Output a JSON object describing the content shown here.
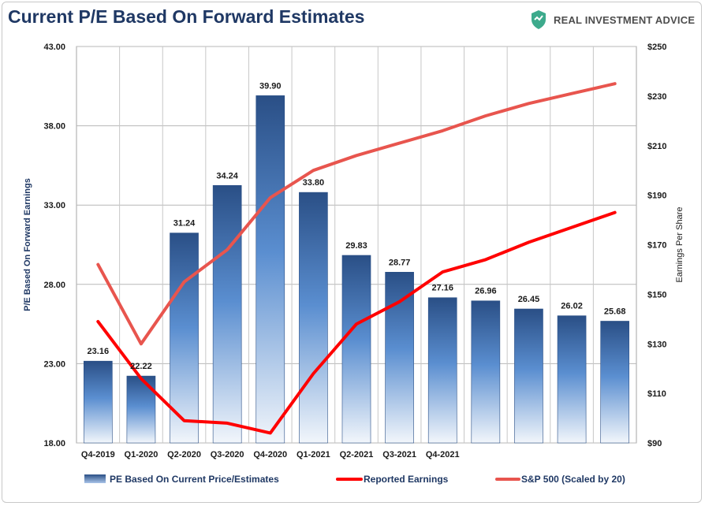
{
  "header": {
    "title": "Current P/E Based On Forward Estimates",
    "brand": "REAL INVESTMENT ADVICE",
    "brand_icon": "shield-icon"
  },
  "chart_data": {
    "type": "bar",
    "title": "Current P/E Based On Forward Estimates",
    "categories": [
      "Q4-2019",
      "Q1-2020",
      "Q2-2020",
      "Q3-2020",
      "Q4-2020",
      "Q1-2021",
      "Q2-2021",
      "Q3-2021",
      "Q4-2021",
      "",
      "",
      "",
      ""
    ],
    "ylabel": "P/E Based On Forward Earnings",
    "y2label": "Earnings Per Share",
    "ylim": [
      18,
      43
    ],
    "yticks": [
      "18.00",
      "23.00",
      "28.00",
      "33.00",
      "38.00",
      "43.00"
    ],
    "y2lim": [
      90,
      250
    ],
    "y2ticks": [
      "$90",
      "$110",
      "$130",
      "$150",
      "$170",
      "$190",
      "$210",
      "$230",
      "$250"
    ],
    "grid": true,
    "legend_position": "bottom",
    "series": [
      {
        "name": "PE Based On Current Price/Estimates",
        "type": "bar",
        "axis": "left",
        "color": "#2e5a94",
        "values": [
          23.16,
          22.22,
          31.24,
          34.24,
          39.9,
          33.8,
          29.83,
          28.77,
          27.16,
          26.96,
          26.45,
          26.02,
          25.68
        ],
        "labels": [
          "23.16",
          "22.22",
          "31.24",
          "34.24",
          "39.90",
          "33.80",
          "29.83",
          "28.77",
          "27.16",
          "26.96",
          "26.45",
          "26.02",
          "25.68"
        ]
      },
      {
        "name": "Reported Earnings",
        "type": "line",
        "axis": "right",
        "color": "#ff0000",
        "values": [
          139,
          116,
          99,
          98,
          94,
          118,
          138,
          147,
          159,
          164,
          171,
          177,
          183
        ]
      },
      {
        "name": "S&P 500 (Scaled by 20)",
        "type": "line",
        "axis": "right",
        "color": "#e8554e",
        "values": [
          162,
          130,
          155,
          168,
          189,
          200,
          206,
          211,
          216,
          222,
          227,
          231,
          235
        ]
      }
    ]
  }
}
